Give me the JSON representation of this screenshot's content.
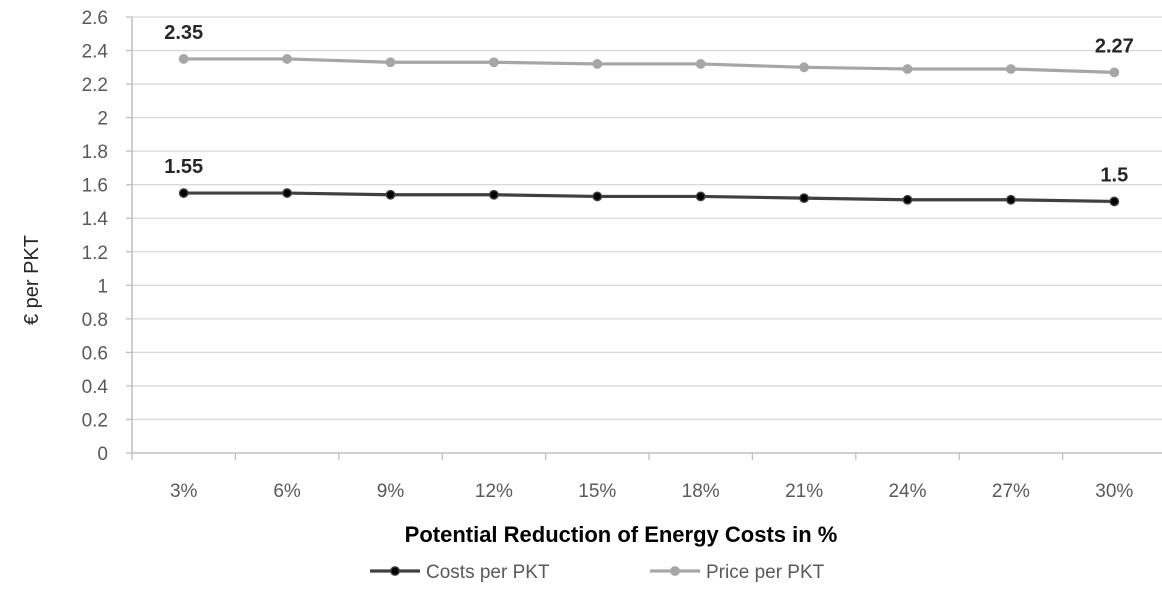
{
  "chart_data": {
    "type": "line",
    "categories": [
      "3%",
      "6%",
      "9%",
      "12%",
      "15%",
      "18%",
      "21%",
      "24%",
      "27%",
      "30%"
    ],
    "series": [
      {
        "name": "Costs per PKT",
        "color": "#404040",
        "marker_color": "#000000",
        "values": [
          1.55,
          1.55,
          1.54,
          1.54,
          1.53,
          1.53,
          1.52,
          1.51,
          1.51,
          1.5
        ],
        "data_labels": {
          "first": "1.55",
          "last": "1.5"
        }
      },
      {
        "name": "Price per PKT",
        "color": "#a6a6a6",
        "marker_color": "#a6a6a6",
        "values": [
          2.35,
          2.35,
          2.33,
          2.33,
          2.32,
          2.32,
          2.3,
          2.29,
          2.29,
          2.27
        ],
        "data_labels": {
          "first": "2.35",
          "last": "2.27"
        }
      }
    ],
    "title": "",
    "xlabel": "Potential Reduction of Energy Costs in %",
    "ylabel": "€ per PKT",
    "ylim": [
      0,
      2.6
    ],
    "yticks": [
      "0",
      "0.2",
      "0.4",
      "0.6",
      "0.8",
      "1",
      "1.2",
      "1.4",
      "1.6",
      "1.8",
      "2",
      "2.2",
      "2.4",
      "2.6"
    ],
    "grid": true,
    "legend_position": "bottom"
  }
}
